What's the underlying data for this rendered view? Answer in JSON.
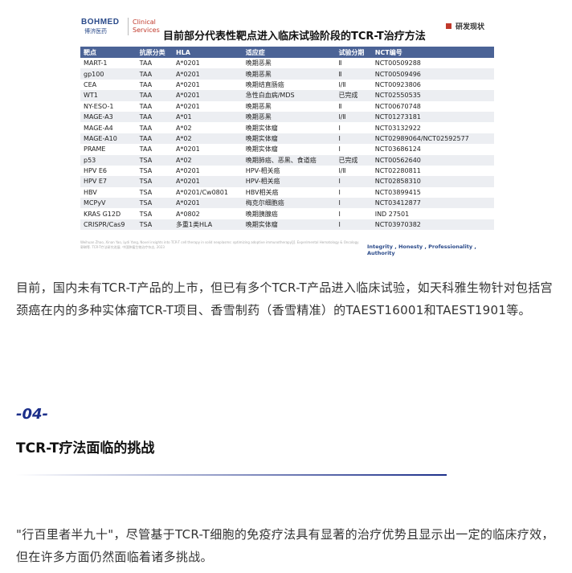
{
  "slide": {
    "logo_brand": "BOHMED",
    "logo_cn": "博济医药",
    "logo_service": [
      "Clinical",
      "Services"
    ],
    "title": "目前部分代表性靶点进入临床试验阶段的TCR-T治疗方法",
    "tag": "研发现状",
    "table": {
      "header": [
        "靶点",
        "抗原分类",
        "HLA",
        "适应症",
        "试验分期",
        "NCT编号"
      ],
      "rows": [
        [
          "MART-1",
          "TAA",
          "A*0201",
          "晚期恶黑",
          "Ⅱ",
          "NCT00509288"
        ],
        [
          "gp100",
          "TAA",
          "A*0201",
          "晚期恶黑",
          "Ⅱ",
          "NCT00509496"
        ],
        [
          "CEA",
          "TAA",
          "A*0201",
          "晚期结直肠癌",
          "Ⅰ/Ⅱ",
          "NCT00923806"
        ],
        [
          "WT1",
          "TAA",
          "A*0201",
          "急性白血病/MDS",
          "已完成",
          "NCT02550535"
        ],
        [
          "NY-ESO-1",
          "TAA",
          "A*0201",
          "晚期恶黑",
          "Ⅱ",
          "NCT00670748"
        ],
        [
          "MAGE-A3",
          "TAA",
          "A*01",
          "晚期恶黑",
          "Ⅰ/Ⅱ",
          "NCT01273181"
        ],
        [
          "MAGE-A4",
          "TAA",
          "A*02",
          "晚期实体瘤",
          "Ⅰ",
          "NCT03132922"
        ],
        [
          "MAGE-A10",
          "TAA",
          "A*02",
          "晚期实体瘤",
          "Ⅰ",
          "NCT02989064/NCT02592577"
        ],
        [
          "PRAME",
          "TAA",
          "A*0201",
          "晚期实体瘤",
          "Ⅰ",
          "NCT03686124"
        ],
        [
          "p53",
          "TSA",
          "A*02",
          "晚期肺癌、恶黑、食道癌",
          "已完成",
          "NCT00562640"
        ],
        [
          "HPV E6",
          "TSA",
          "A*0201",
          "HPV-相关癌",
          "Ⅰ/Ⅱ",
          "NCT02280811"
        ],
        [
          "HPV E7",
          "TSA",
          "A*0201",
          "HPV-相关癌",
          "Ⅰ",
          "NCT02858310"
        ],
        [
          "HBV",
          "TSA",
          "A*0201/Cw0801",
          "HBV相关癌",
          "Ⅰ",
          "NCT03899415"
        ],
        [
          "MCPyV",
          "TSA",
          "A*0201",
          "梅克尔细胞癌",
          "Ⅰ",
          "NCT03412877"
        ],
        [
          "KRAS G12D",
          "TSA",
          "A*0802",
          "晚期胰腺癌",
          "Ⅰ",
          "IND 27501"
        ],
        [
          "CRISPR/Cas9",
          "TSA",
          "多重1类HLA",
          "晚期实体瘤",
          "Ⅰ",
          "NCT03970382"
        ]
      ]
    },
    "footnote": [
      "Weihuan Zhao, Xinan Yao, Lydi Yang, Novel insights into TCR-T cell therapy in solid neoplasms: optimizing adoptive immunotherapy[J]. Experimental Hematology & Oncology",
      "郭琳等. TCR-T疗法研究进展. 中国肿瘤生物治疗杂志, 2023"
    ],
    "motto": "Integrity ,  Honesty ,  Professionality ,  Authority"
  },
  "paragraph_1": "目前，国内未有TCR-T产品的上市，但已有多个TCR-T产品进入临床试验，如天科雅生物针对包括宫颈癌在内的多种实体瘤TCR-T项目、香雪制药（香雪精准）的TAEST16001和TAEST1901等。",
  "section": {
    "number": "-04-",
    "heading": "TCR-T疗法面临的挑战"
  },
  "paragraph_2": "\"行百里者半九十\"，尽管基于TCR-T细胞的免疫疗法具有显著的治疗优势且显示出一定的临床疗效，但在许多方面仍然面临着诸多挑战。"
}
